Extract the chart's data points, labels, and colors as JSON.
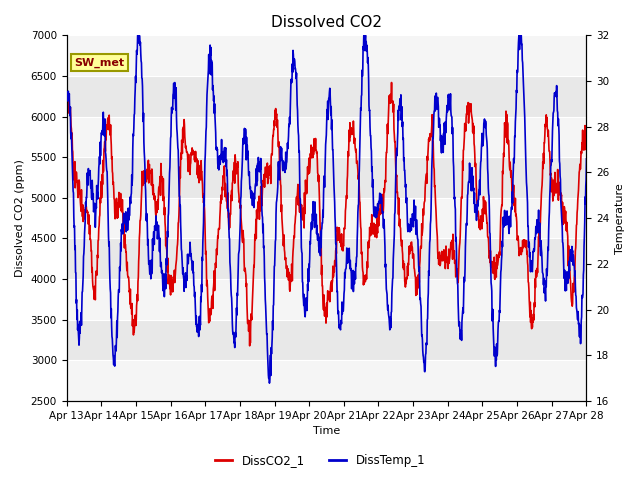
{
  "title": "Dissolved CO2",
  "xlabel": "Time",
  "ylabel_left": "Dissolved CO2 (ppm)",
  "ylabel_right": "Temperature",
  "ylim_left": [
    2500,
    7000
  ],
  "ylim_right": [
    16,
    32
  ],
  "yticks_left": [
    2500,
    3000,
    3500,
    4000,
    4500,
    5000,
    5500,
    6000,
    6500,
    7000
  ],
  "yticks_right": [
    16,
    18,
    20,
    22,
    24,
    26,
    28,
    30,
    32
  ],
  "xtick_labels": [
    "Apr 13",
    "Apr 14",
    "Apr 15",
    "Apr 16",
    "Apr 17",
    "Apr 18",
    "Apr 19",
    "Apr 20",
    "Apr 21",
    "Apr 22",
    "Apr 23",
    "Apr 24",
    "Apr 25",
    "Apr 26",
    "Apr 27",
    "Apr 28"
  ],
  "color_co2": "#dd0000",
  "color_temp": "#0000cc",
  "line_width": 1.2,
  "legend_labels": [
    "DissCO2_1",
    "DissTemp_1"
  ],
  "label_box_text": "SW_met",
  "label_box_facecolor": "#ffff99",
  "label_box_edgecolor": "#999900",
  "plot_bg_color": "#e8e8e8",
  "white_band_color": "#f5f5f5",
  "fig_facecolor": "#ffffff",
  "fig_width": 6.4,
  "fig_height": 4.8,
  "dpi": 100,
  "title_fontsize": 11,
  "axis_label_fontsize": 8,
  "tick_fontsize": 7.5
}
